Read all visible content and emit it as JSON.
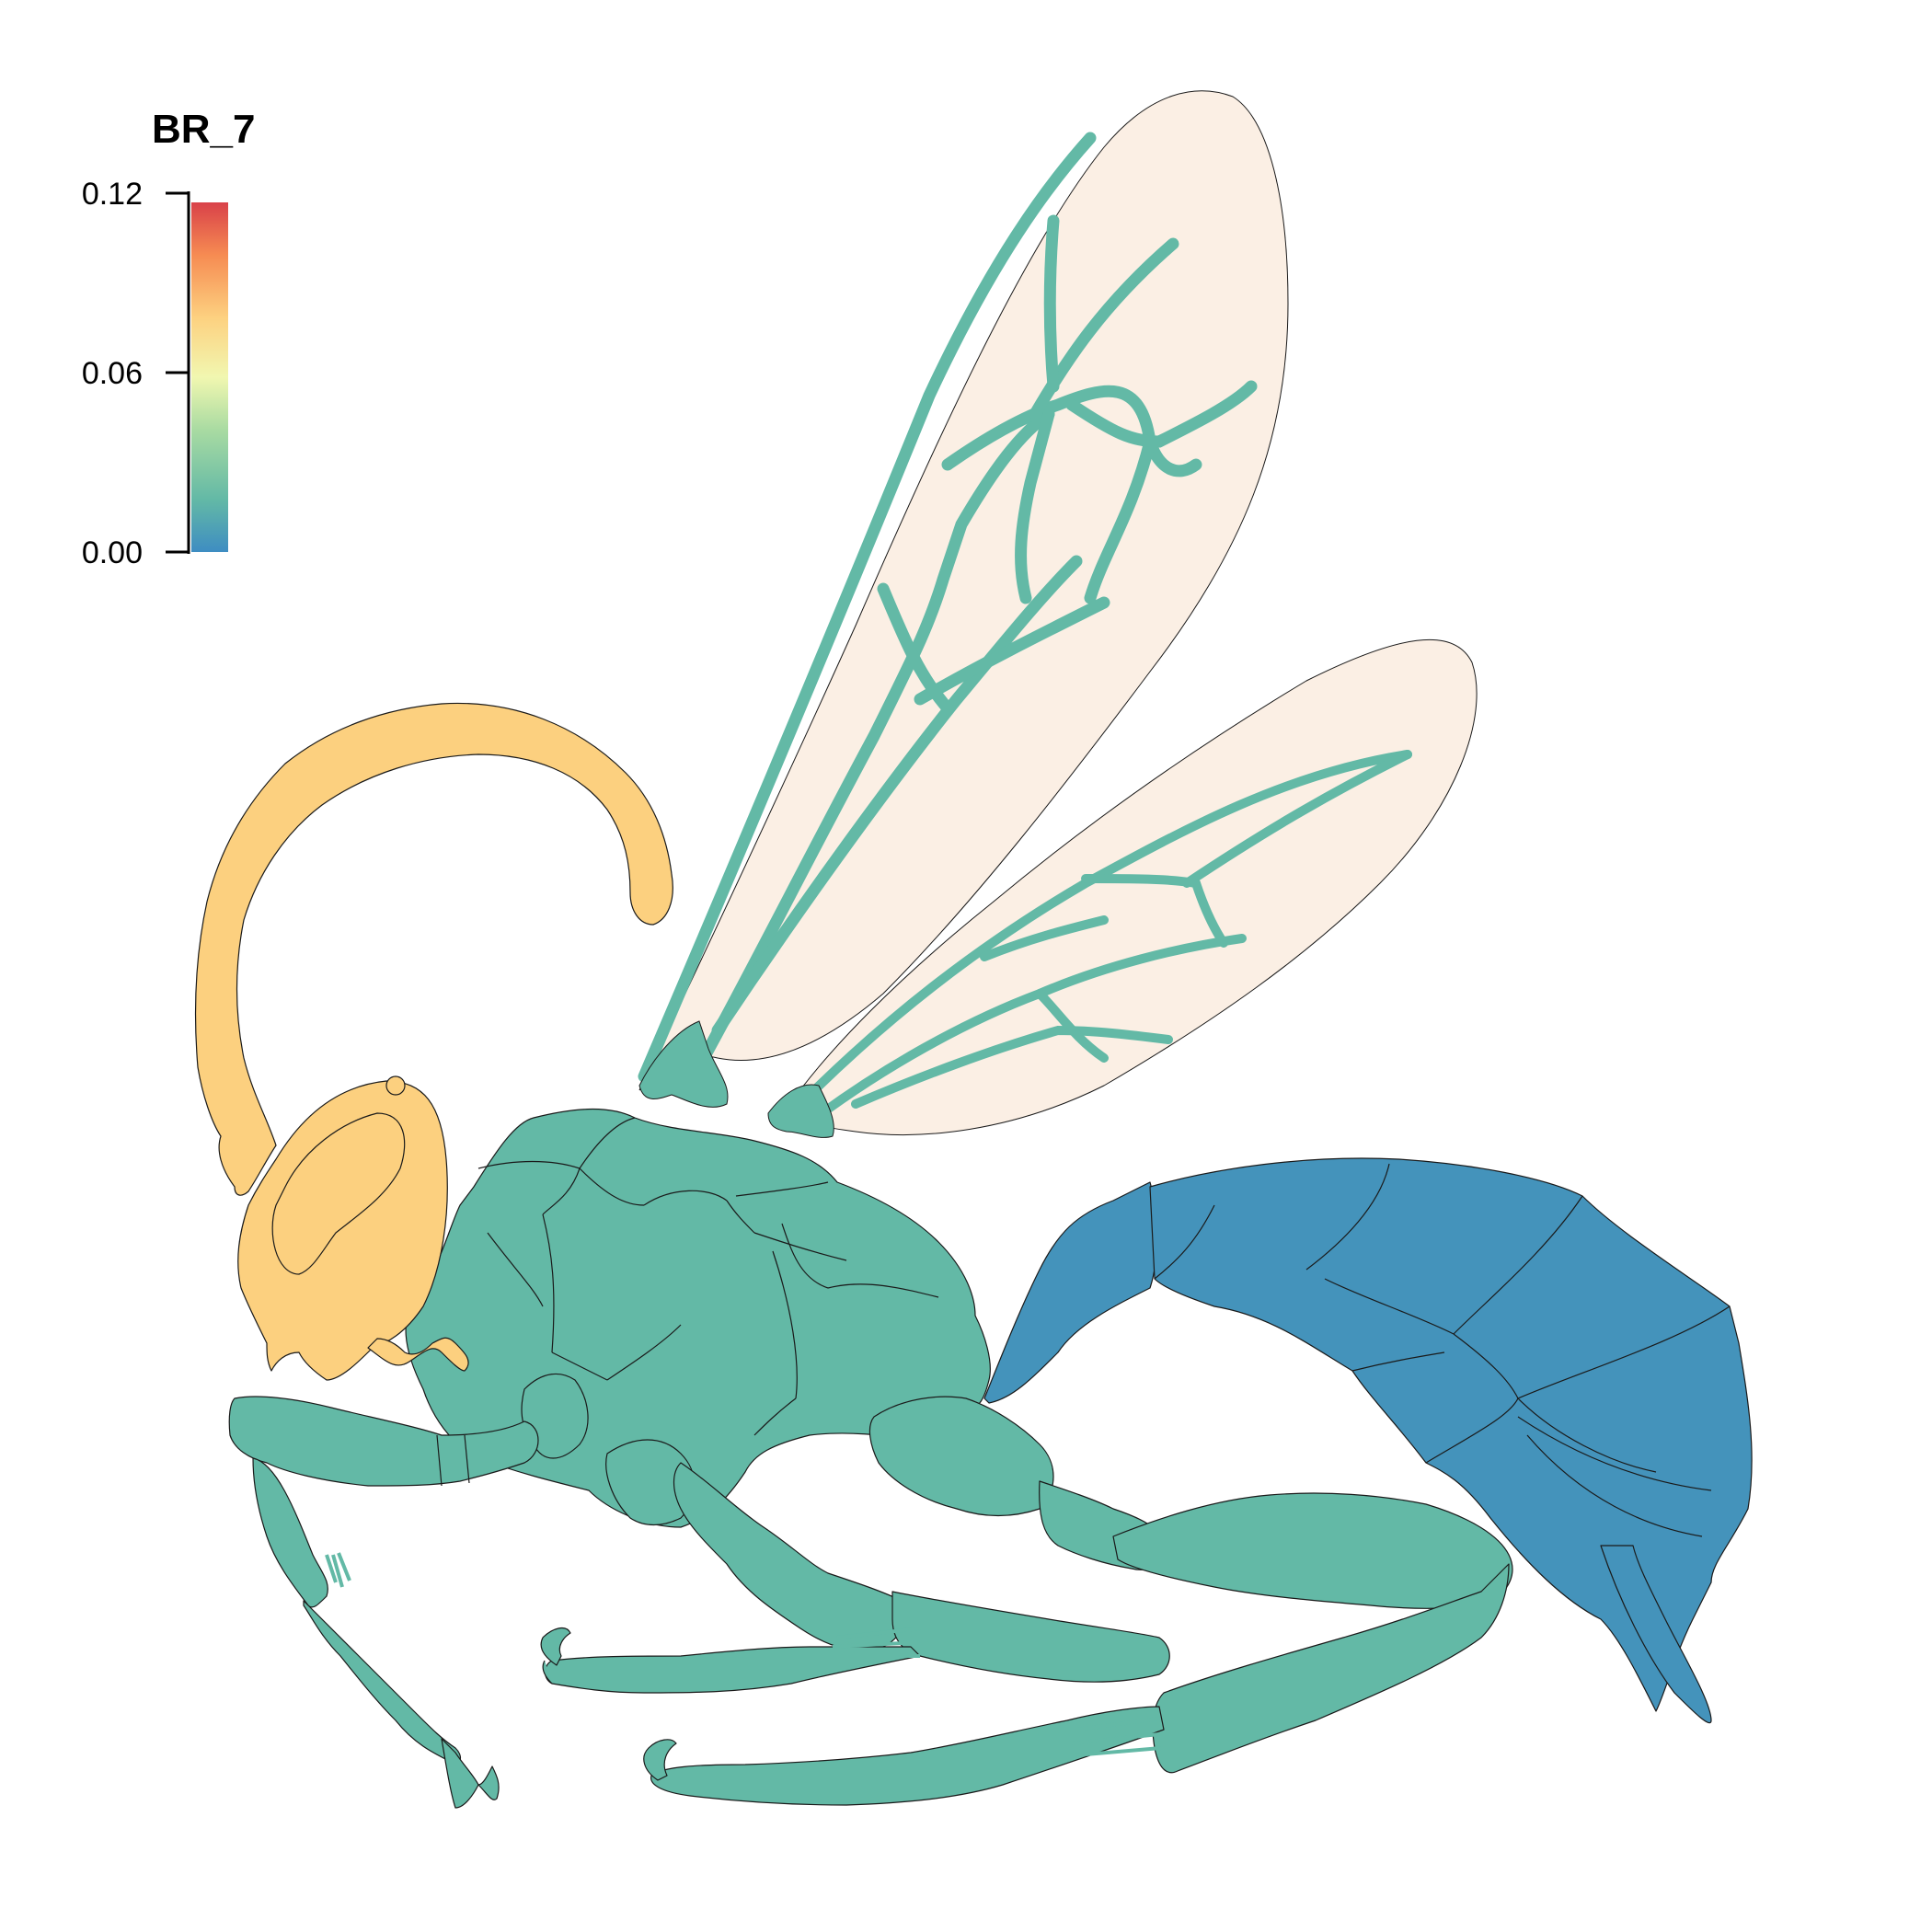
{
  "legend": {
    "title": "BR_7",
    "ticks": [
      "0.12",
      "0.06",
      "0.00"
    ],
    "scale_min": 0.0,
    "scale_max": 0.12,
    "gradient_colors": [
      "#3e8dc2",
      "#63b9a6",
      "#a9dba2",
      "#f1f7b0",
      "#fdd180",
      "#f68b52",
      "#d94149"
    ]
  },
  "colors": {
    "head_antenna": "#fcd07f",
    "thorax_legs_veins": "#63b9a6",
    "abdomen": "#4493bb",
    "wing_membrane": "#fbefe4"
  }
}
